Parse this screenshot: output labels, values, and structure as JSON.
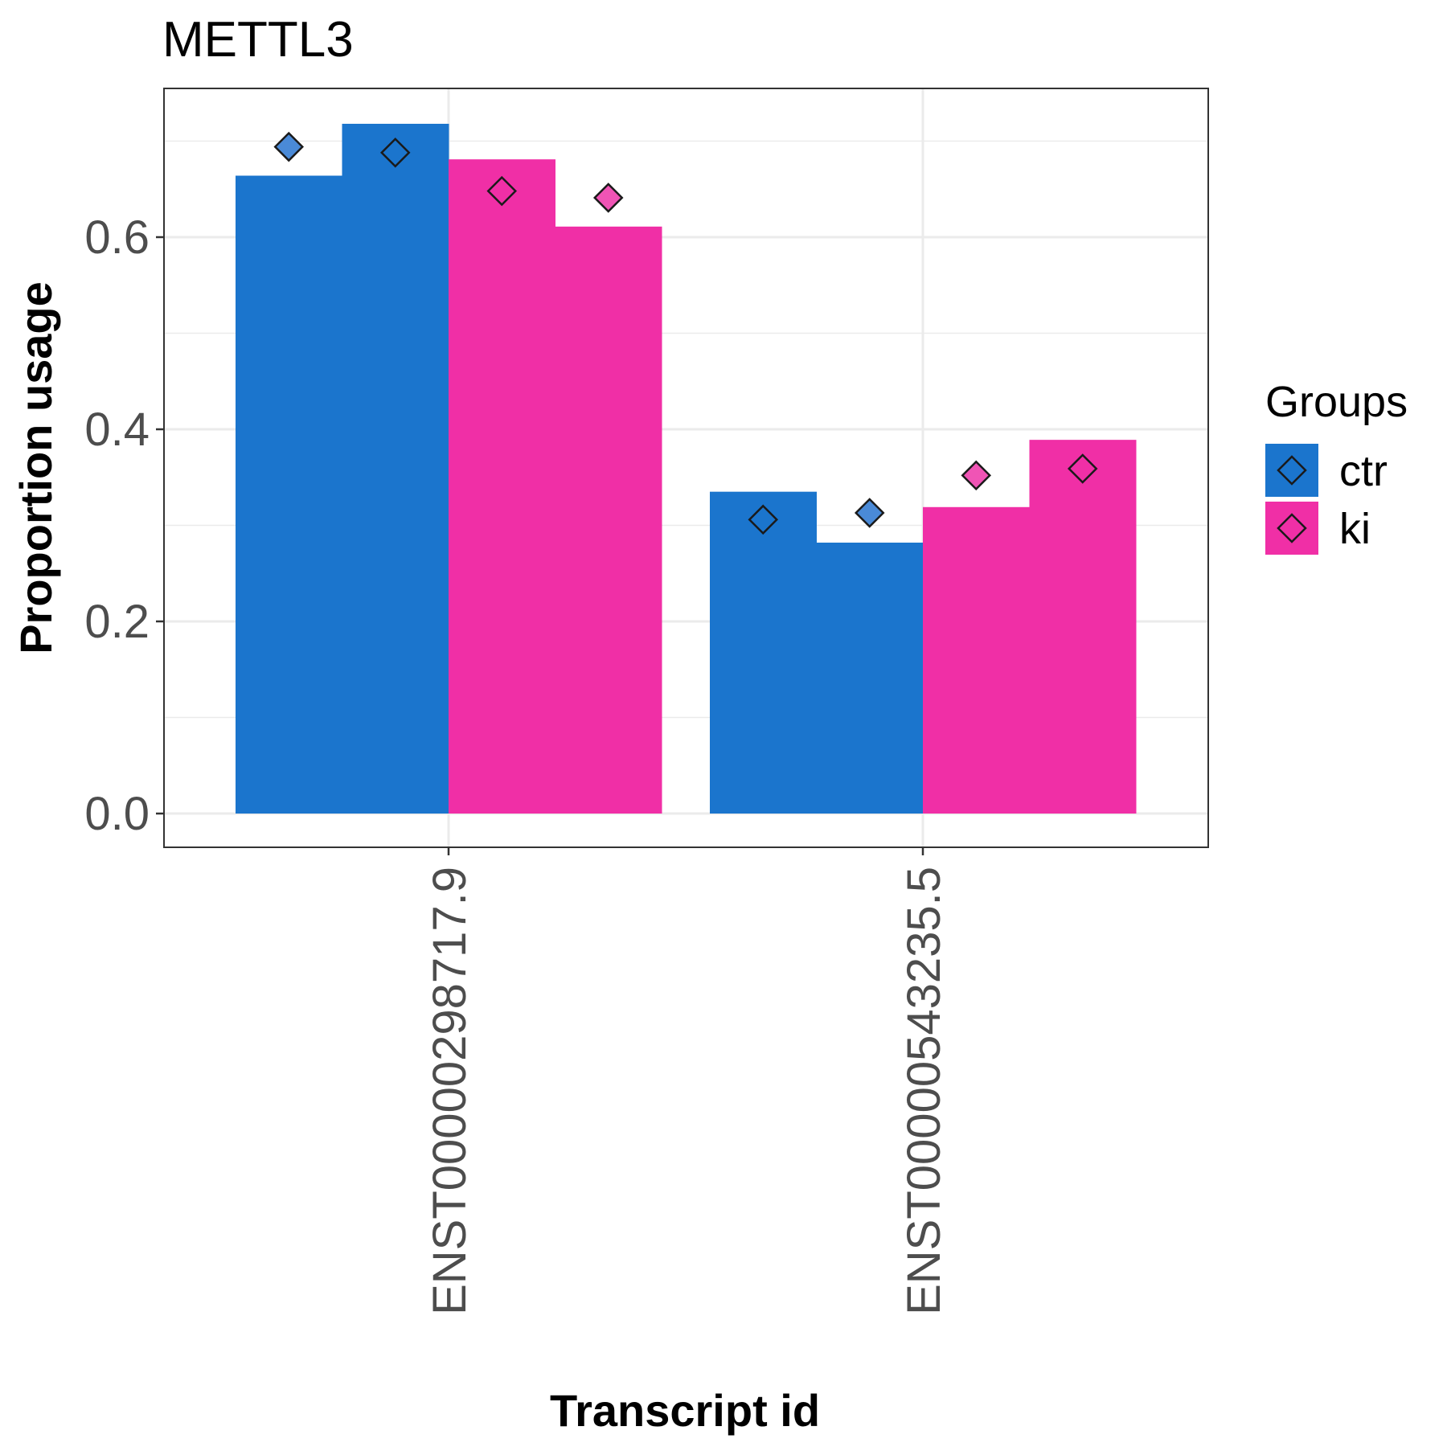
{
  "chart_data": {
    "type": "bar",
    "title": "METTL3",
    "xlabel": "Transcript id",
    "ylabel": "Proportion usage",
    "categories": [
      "ENST00000298717.9",
      "ENST00000543235.5"
    ],
    "ylim": [
      -0.07,
      1.5
    ],
    "yticks": [
      0.0,
      0.2,
      0.4,
      0.6
    ],
    "ytick_labels": [
      "0.0",
      "0.2",
      "0.4",
      "0.6"
    ],
    "grid": true,
    "legend": {
      "title": "Groups",
      "position": "right"
    },
    "series": [
      {
        "name": "ctr",
        "group": "ctr",
        "category": "ENST00000298717.9",
        "value": 0.664,
        "point": 0.694,
        "color": "#1b75cd",
        "point_color": "#4a8ad7"
      },
      {
        "name": "ctr",
        "group": "ctr",
        "category": "ENST00000298717.9",
        "value": 0.718,
        "point": 0.688,
        "color": "#1b75cd",
        "point_color": "#1b75cd"
      },
      {
        "name": "ki",
        "group": "ki",
        "category": "ENST00000298717.9",
        "value": 0.681,
        "point": 0.648,
        "color": "#f02fa6",
        "point_color": "#f02fa6"
      },
      {
        "name": "ki",
        "group": "ki",
        "category": "ENST00000298717.9",
        "value": 0.611,
        "point": 0.641,
        "color": "#f02fa6",
        "point_color": "#f054b5"
      },
      {
        "name": "ctr",
        "group": "ctr",
        "category": "ENST00000543235.5",
        "value": 0.335,
        "point": 0.306,
        "color": "#1b75cd",
        "point_color": "#1b75cd"
      },
      {
        "name": "ctr",
        "group": "ctr",
        "category": "ENST00000543235.5",
        "value": 0.282,
        "point": 0.313,
        "color": "#1b75cd",
        "point_color": "#4a8ad7"
      },
      {
        "name": "ki",
        "group": "ki",
        "category": "ENST00000543235.5",
        "value": 0.319,
        "point": 0.352,
        "color": "#f02fa6",
        "point_color": "#f054b5"
      },
      {
        "name": "ki",
        "group": "ki",
        "category": "ENST00000543235.5",
        "value": 0.389,
        "point": 0.359,
        "color": "#f02fa6",
        "point_color": "#f02fa6"
      }
    ],
    "legend_entries": [
      {
        "label": "ctr",
        "color": "#1b75cd"
      },
      {
        "label": "ki",
        "color": "#f02fa6"
      }
    ]
  }
}
